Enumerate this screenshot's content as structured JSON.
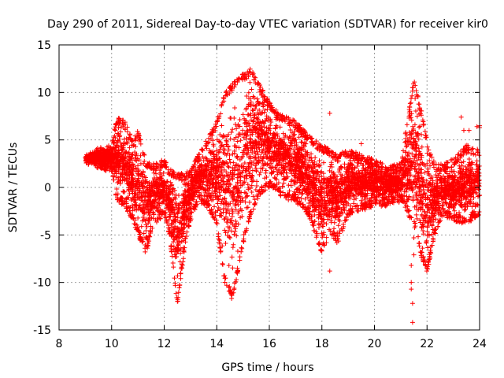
{
  "chart_data": {
    "type": "scatter",
    "title": "Day 290 of 2011, Sidereal Day-to-day VTEC variation (SDTVAR) for receiver kir0",
    "xlabel": "GPS time / hours",
    "ylabel": "SDTVAR / TECUs",
    "xlim": [
      8,
      24
    ],
    "ylim": [
      -15,
      15
    ],
    "xticks": [
      "8",
      "10",
      "12",
      "14",
      "16",
      "18",
      "20",
      "22",
      "24"
    ],
    "yticks": [
      "-15",
      "-10",
      "-5",
      "0",
      "5",
      "10",
      "15"
    ],
    "grid": true,
    "marker": "+",
    "color": "#ff0000",
    "envelope": {
      "x": [
        9.0,
        9.5,
        10.0,
        10.2,
        10.5,
        10.8,
        11.0,
        11.3,
        11.6,
        12.0,
        12.2,
        12.5,
        12.8,
        13.0,
        13.3,
        13.6,
        14.0,
        14.3,
        14.6,
        15.0,
        15.3,
        15.6,
        16.0,
        16.3,
        16.6,
        17.0,
        17.5,
        18.0,
        18.3,
        18.6,
        19.0,
        19.5,
        20.0,
        20.5,
        21.0,
        21.5,
        21.8,
        22.0,
        22.3,
        22.6,
        23.0,
        23.5,
        24.0
      ],
      "upper": [
        3.5,
        4.2,
        4.5,
        7.5,
        7.0,
        5.0,
        6.0,
        3.0,
        2.5,
        3.0,
        2.0,
        1.5,
        1.5,
        2.0,
        3.5,
        5.0,
        7.0,
        10.0,
        11.0,
        12.0,
        12.5,
        11.0,
        9.0,
        8.0,
        7.5,
        7.0,
        5.5,
        4.5,
        4.0,
        3.5,
        4.0,
        3.5,
        3.0,
        2.5,
        2.5,
        11.5,
        8.0,
        5.0,
        2.5,
        2.5,
        3.0,
        4.5,
        4.0
      ],
      "lower": [
        2.5,
        2.0,
        1.5,
        -1.5,
        -2.0,
        -3.5,
        -5.0,
        -7.0,
        -4.0,
        -3.0,
        -5.0,
        -12.5,
        -6.0,
        -3.5,
        -1.5,
        -2.0,
        -4.0,
        -10.0,
        -12.0,
        -6.0,
        -3.0,
        -1.0,
        0.0,
        -0.5,
        -1.5,
        -1.5,
        -3.0,
        -7.0,
        -5.0,
        -6.0,
        -3.0,
        -2.5,
        -2.0,
        -2.0,
        -1.5,
        -4.0,
        -7.5,
        -9.0,
        -5.0,
        -3.0,
        -3.5,
        -4.0,
        -3.0
      ]
    },
    "outliers": [
      {
        "x": 18.3,
        "y": 7.8
      },
      {
        "x": 18.3,
        "y": -8.8
      },
      {
        "x": 21.4,
        "y": -8.2
      },
      {
        "x": 21.4,
        "y": -10.0
      },
      {
        "x": 21.4,
        "y": -10.7
      },
      {
        "x": 21.45,
        "y": -12.2
      },
      {
        "x": 21.45,
        "y": -14.2
      },
      {
        "x": 21.5,
        "y": -5.3
      },
      {
        "x": 21.5,
        "y": -7.1
      },
      {
        "x": 23.3,
        "y": 7.4
      },
      {
        "x": 23.4,
        "y": 6.0
      },
      {
        "x": 23.9,
        "y": 6.4
      },
      {
        "x": 24.0,
        "y": 6.3
      },
      {
        "x": 24.0,
        "y": 6.5
      },
      {
        "x": 19.5,
        "y": 4.6
      },
      {
        "x": 22.0,
        "y": 2.5
      },
      {
        "x": 23.6,
        "y": 6.0
      }
    ]
  }
}
